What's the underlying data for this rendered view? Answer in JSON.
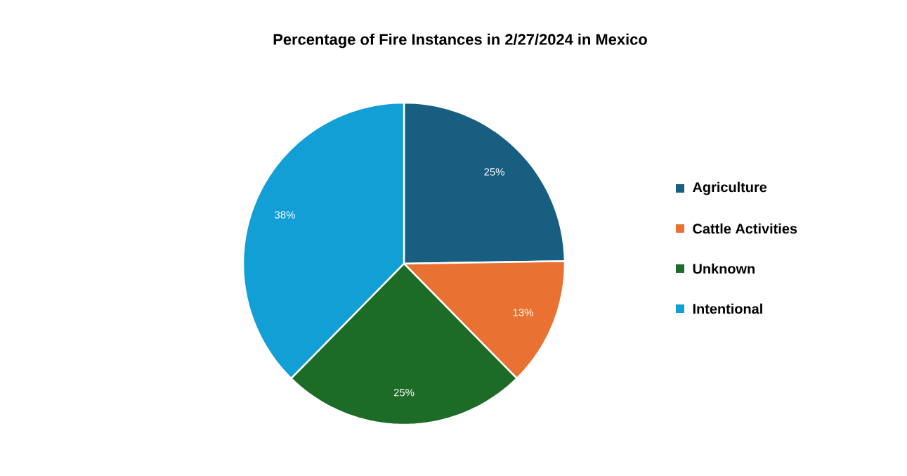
{
  "chart_data": {
    "type": "pie",
    "title": "Percentage of Fire Instances in 2/27/2024 in Mexico",
    "categories": [
      "Agriculture",
      "Cattle Activities",
      "Unknown",
      "Intentional"
    ],
    "values": [
      25,
      13,
      25,
      38
    ],
    "colors": [
      "#175e80",
      "#e97132",
      "#1c6b27",
      "#119fd6"
    ],
    "value_labels": [
      "25%",
      "13%",
      "25%",
      "38%"
    ],
    "legend": "right"
  }
}
